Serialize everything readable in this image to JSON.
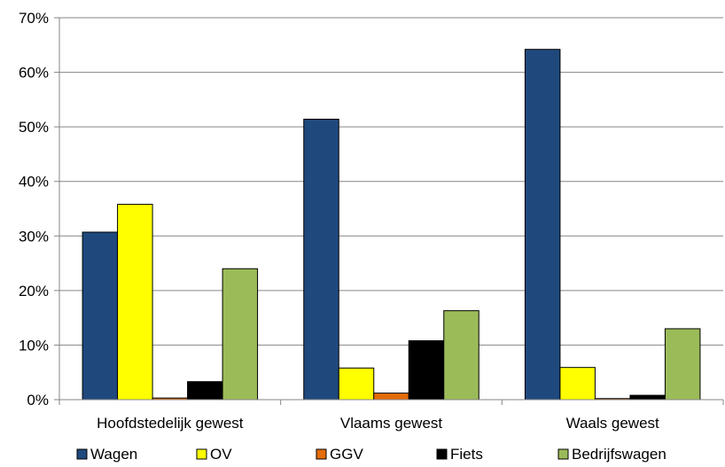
{
  "chart_data": {
    "type": "bar",
    "title": "",
    "xlabel": "",
    "ylabel": "",
    "categories": [
      "Hoofdstedelijk gewest",
      "Vlaams gewest",
      "Waals gewest"
    ],
    "series": [
      {
        "name": "Wagen",
        "color": "#1f497d",
        "values": [
          30.7,
          51.4,
          64.2
        ]
      },
      {
        "name": "OV",
        "color": "#ffff00",
        "values": [
          35.8,
          5.8,
          5.9
        ]
      },
      {
        "name": "GGV",
        "color": "#e46c0a",
        "values": [
          0.3,
          1.2,
          0.2
        ]
      },
      {
        "name": "Fiets",
        "color": "#000000",
        "values": [
          3.3,
          10.8,
          0.8
        ]
      },
      {
        "name": "Bedrijfswagen",
        "color": "#9bbb59",
        "values": [
          24.0,
          16.3,
          13.0
        ]
      }
    ],
    "yticks": [
      "0%",
      "10%",
      "20%",
      "30%",
      "40%",
      "50%",
      "60%",
      "70%"
    ],
    "ylim": [
      0,
      70
    ],
    "grid": true,
    "legend_position": "bottom"
  }
}
